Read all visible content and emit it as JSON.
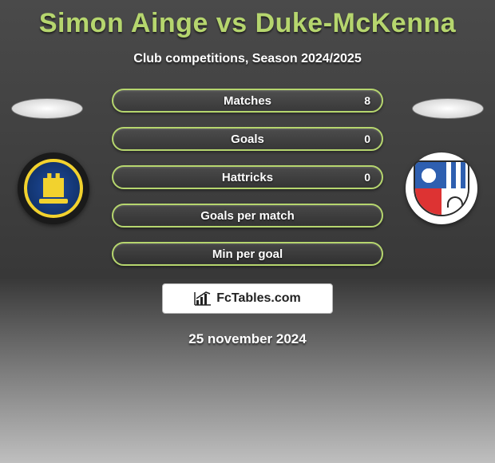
{
  "title": "Simon Ainge vs Duke-McKenna",
  "subtitle": "Club competitions, Season 2024/2025",
  "date": "25 november 2024",
  "brand": "FcTables.com",
  "colors": {
    "accent": "#b6d66e",
    "text": "#ffffff",
    "bg_top": "#4a4a4a",
    "bg_bottom": "#bfbfbf",
    "brand_bg": "#ffffff"
  },
  "bars": [
    {
      "label": "Matches",
      "left": "",
      "right": "8",
      "fill_pct": 0
    },
    {
      "label": "Goals",
      "left": "",
      "right": "0",
      "fill_pct": 0
    },
    {
      "label": "Hattricks",
      "left": "",
      "right": "0",
      "fill_pct": 0
    },
    {
      "label": "Goals per match",
      "left": "",
      "right": "",
      "fill_pct": 0
    },
    {
      "label": "Min per goal",
      "left": "",
      "right": "",
      "fill_pct": 0
    }
  ],
  "players": {
    "left": {
      "name": "Simon Ainge",
      "club_badge": "gainsborough-trinity"
    },
    "right": {
      "name": "Duke-McKenna",
      "club_badge": "shield-tricolor"
    }
  }
}
